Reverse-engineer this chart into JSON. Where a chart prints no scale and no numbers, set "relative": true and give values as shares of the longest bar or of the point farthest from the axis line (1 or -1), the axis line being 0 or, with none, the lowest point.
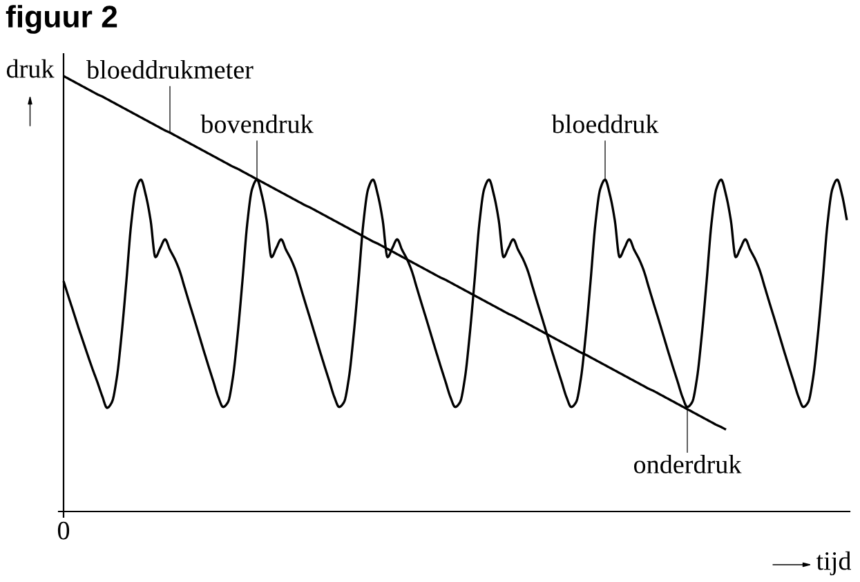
{
  "chart_data": {
    "type": "line",
    "title": "figuur 2",
    "xlabel": "tijd",
    "ylabel": "druk",
    "relative": true,
    "categories": [
      null,
      null,
      null,
      null,
      null,
      null,
      null,
      null,
      null,
      null,
      null,
      null,
      null,
      null,
      null,
      null,
      null,
      null,
      null,
      null,
      null,
      null,
      null,
      null,
      null,
      null,
      null,
      null,
      null,
      null,
      null,
      null,
      null,
      null,
      null,
      null,
      null,
      null,
      null,
      null,
      null,
      null,
      null,
      null,
      null,
      null,
      null,
      null,
      null,
      null,
      null,
      null,
      null,
      null,
      null,
      null,
      null,
      null,
      null,
      null,
      null,
      null,
      null,
      null,
      null,
      null,
      null,
      null,
      null,
      null,
      null,
      null,
      null,
      null,
      null,
      null,
      null,
      null,
      null,
      null,
      null,
      null,
      null,
      null,
      null,
      null,
      null,
      null,
      null,
      null,
      null,
      null,
      null,
      null,
      null,
      null,
      null,
      null,
      null,
      null,
      null,
      null,
      null,
      null,
      null,
      null,
      null,
      null,
      null,
      null,
      null,
      null,
      null,
      null,
      null,
      null,
      null,
      null,
      null,
      null,
      null,
      null,
      null,
      null,
      null,
      null,
      null,
      null,
      null,
      null,
      null,
      null,
      null,
      null,
      null,
      null,
      null,
      null,
      null,
      null,
      null,
      null,
      null,
      null,
      null,
      null,
      null,
      null,
      null,
      null,
      null,
      null,
      null,
      null,
      null,
      null,
      null,
      null,
      null,
      null,
      null,
      null,
      null
    ],
    "series": [
      {
        "name": "bloeddruk",
        "color": "#000000",
        "values": [
          0.529,
          0.494,
          0.46,
          0.425,
          0.392,
          0.359,
          0.327,
          0.297,
          0.265,
          0.238,
          0.251,
          0.306,
          0.406,
          0.53,
          0.662,
          0.741,
          0.762,
          0.727,
          0.669,
          0.584,
          0.605,
          0.625,
          0.601,
          0.58,
          0.553,
          0.516,
          0.479,
          0.443,
          0.406,
          0.369,
          0.333,
          0.298,
          0.263,
          0.24,
          0.251,
          0.306,
          0.406,
          0.53,
          0.662,
          0.741,
          0.762,
          0.727,
          0.669,
          0.584,
          0.605,
          0.625,
          0.601,
          0.58,
          0.553,
          0.516,
          0.479,
          0.443,
          0.406,
          0.369,
          0.333,
          0.298,
          0.263,
          0.24,
          0.251,
          0.306,
          0.406,
          0.53,
          0.662,
          0.741,
          0.762,
          0.727,
          0.669,
          0.584,
          0.605,
          0.625,
          0.601,
          0.58,
          0.553,
          0.516,
          0.479,
          0.443,
          0.406,
          0.369,
          0.333,
          0.298,
          0.263,
          0.24,
          0.251,
          0.306,
          0.406,
          0.53,
          0.662,
          0.741,
          0.762,
          0.727,
          0.669,
          0.584,
          0.605,
          0.625,
          0.601,
          0.58,
          0.553,
          0.516,
          0.479,
          0.443,
          0.406,
          0.369,
          0.333,
          0.298,
          0.263,
          0.24,
          0.251,
          0.306,
          0.406,
          0.53,
          0.662,
          0.741,
          0.762,
          0.727,
          0.669,
          0.584,
          0.605,
          0.625,
          0.601,
          0.58,
          0.553,
          0.516,
          0.479,
          0.443,
          0.406,
          0.369,
          0.333,
          0.298,
          0.263,
          0.24,
          0.251,
          0.306,
          0.406,
          0.53,
          0.662,
          0.741,
          0.762,
          0.727,
          0.669,
          0.584,
          0.605,
          0.625,
          0.601,
          0.58,
          0.553,
          0.516,
          0.479,
          0.443,
          0.406,
          0.369,
          0.333,
          0.298,
          0.263,
          0.24,
          0.251,
          0.306,
          0.406,
          0.53,
          0.662,
          0.741,
          0.762,
          0.727,
          0.669
        ]
      },
      {
        "name": "bloeddrukmeter",
        "color": "#000000",
        "values": [
          1,
          0.994,
          0.988,
          0.982,
          0.976,
          0.97,
          0.964,
          0.958,
          0.953,
          0.947,
          0.941,
          0.935,
          0.929,
          0.923,
          0.917,
          0.911,
          0.905,
          0.899,
          0.893,
          0.887,
          0.881,
          0.875,
          0.87,
          0.864,
          0.858,
          0.852,
          0.846,
          0.84,
          0.834,
          0.828,
          0.822,
          0.816,
          0.81,
          0.804,
          0.798,
          0.792,
          0.787,
          0.781,
          0.775,
          0.769,
          0.763,
          0.757,
          0.751,
          0.745,
          0.739,
          0.733,
          0.727,
          0.721,
          0.715,
          0.709,
          0.703,
          0.698,
          0.692,
          0.686,
          0.68,
          0.674,
          0.668,
          0.662,
          0.656,
          0.65,
          0.644,
          0.638,
          0.632,
          0.626,
          0.62,
          0.615,
          0.609,
          0.603,
          0.597,
          0.591,
          0.585,
          0.579,
          0.573,
          0.567,
          0.561,
          0.555,
          0.549,
          0.543,
          0.537,
          0.532,
          0.526,
          0.52,
          0.514,
          0.508,
          0.502,
          0.496,
          0.49,
          0.484,
          0.478,
          0.472,
          0.466,
          0.46,
          0.454,
          0.449,
          0.443,
          0.437,
          0.431,
          0.425,
          0.419,
          0.413,
          0.407,
          0.401,
          0.395,
          0.389,
          0.383,
          0.377,
          0.371,
          0.365,
          0.36,
          0.354,
          0.348,
          0.342,
          0.336,
          0.33,
          0.324,
          0.318,
          0.312,
          0.306,
          0.3,
          0.294,
          0.288,
          0.282,
          0.277,
          0.271,
          0.265,
          0.259,
          0.253,
          0.247,
          0.241,
          0.235,
          0.229,
          0.223,
          0.217,
          0.211,
          0.205,
          0.199,
          0.194,
          0.188,
          null,
          null,
          null,
          null,
          null,
          null,
          null,
          null,
          null,
          null,
          null,
          null,
          null,
          null,
          null,
          null,
          null,
          null,
          null,
          null,
          null,
          null,
          null,
          null,
          null
        ]
      }
    ],
    "annotations": [
      {
        "text": "bovendruk",
        "y": 0.762
      },
      {
        "text": "onderdruk",
        "y": 0.235
      },
      "0"
    ]
  }
}
